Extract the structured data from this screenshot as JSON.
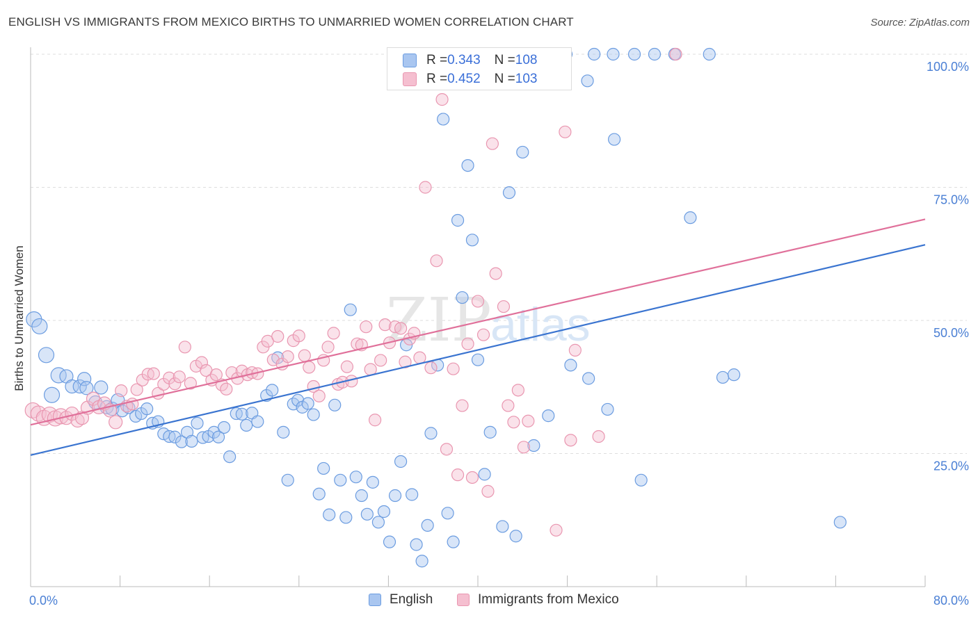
{
  "title": "ENGLISH VS IMMIGRANTS FROM MEXICO BIRTHS TO UNMARRIED WOMEN CORRELATION CHART",
  "source": "Source: ZipAtlas.com",
  "watermark": {
    "zip": "ZIP",
    "atlas": "atlas"
  },
  "stats": {
    "english": {
      "r_label": "R = ",
      "r_value": "0.343",
      "n_label": "N = ",
      "n_value": "108"
    },
    "mexico": {
      "r_label": "R = ",
      "r_value": "0.452",
      "n_label": "N = ",
      "n_value": "103"
    }
  },
  "legend": {
    "english": "English",
    "mexico": "Immigrants from Mexico"
  },
  "colors": {
    "english_fill": "#a9c6f0",
    "english_stroke": "#6b9ce0",
    "english_line": "#3a74d0",
    "mexico_fill": "#f5bfd0",
    "mexico_stroke": "#e996b0",
    "mexico_line": "#e0709a",
    "axis_text": "#4a7fd4",
    "grid": "#dddddd"
  },
  "chart_data": {
    "type": "scatter",
    "title": "ENGLISH VS IMMIGRANTS FROM MEXICO BIRTHS TO UNMARRIED WOMEN CORRELATION CHART",
    "xlabel": "",
    "ylabel": "Births to Unmarried Women",
    "xlim": [
      0,
      80
    ],
    "ylim": [
      0,
      100
    ],
    "x_tick_labels": [
      "0.0%",
      "80.0%"
    ],
    "y_tick_labels": [
      "25.0%",
      "50.0%",
      "75.0%",
      "100.0%"
    ],
    "y_ticks": [
      25,
      50,
      75,
      100
    ],
    "grid": true,
    "legend_position": "bottom",
    "series": [
      {
        "name": "English",
        "r": 0.343,
        "n": 108,
        "trend": {
          "x": [
            0,
            80
          ],
          "y": [
            24.7,
            64.2
          ]
        },
        "points": [
          [
            0.3,
            50.2
          ],
          [
            0.8,
            48.9
          ],
          [
            1.4,
            43.5
          ],
          [
            1.9,
            36.0
          ],
          [
            2.5,
            39.7
          ],
          [
            3.2,
            39.5
          ],
          [
            3.7,
            37.6
          ],
          [
            4.4,
            37.6
          ],
          [
            4.8,
            39.0
          ],
          [
            5.0,
            37.3
          ],
          [
            5.8,
            34.6
          ],
          [
            6.3,
            37.4
          ],
          [
            6.8,
            33.7
          ],
          [
            7.3,
            33.4
          ],
          [
            7.8,
            35.0
          ],
          [
            8.2,
            33.0
          ],
          [
            8.8,
            33.6
          ],
          [
            9.4,
            32.0
          ],
          [
            9.9,
            32.5
          ],
          [
            10.4,
            33.4
          ],
          [
            10.9,
            30.7
          ],
          [
            11.4,
            31.0
          ],
          [
            11.9,
            28.7
          ],
          [
            12.4,
            28.2
          ],
          [
            12.9,
            28.1
          ],
          [
            13.5,
            27.2
          ],
          [
            14.0,
            29.0
          ],
          [
            14.4,
            27.3
          ],
          [
            14.9,
            30.7
          ],
          [
            15.4,
            28.0
          ],
          [
            15.9,
            28.2
          ],
          [
            16.4,
            29.0
          ],
          [
            16.8,
            28.1
          ],
          [
            17.3,
            29.9
          ],
          [
            17.8,
            24.4
          ],
          [
            18.4,
            32.5
          ],
          [
            18.9,
            32.4
          ],
          [
            19.3,
            30.3
          ],
          [
            19.8,
            32.6
          ],
          [
            20.3,
            31.0
          ],
          [
            21.1,
            35.9
          ],
          [
            21.6,
            36.9
          ],
          [
            22.1,
            43.0
          ],
          [
            22.6,
            29.0
          ],
          [
            23.0,
            20.0
          ],
          [
            23.5,
            34.3
          ],
          [
            23.9,
            35.0
          ],
          [
            24.3,
            33.7
          ],
          [
            24.8,
            34.4
          ],
          [
            25.3,
            32.3
          ],
          [
            25.8,
            17.4
          ],
          [
            26.2,
            22.2
          ],
          [
            26.7,
            13.5
          ],
          [
            27.2,
            34.1
          ],
          [
            27.7,
            20.0
          ],
          [
            28.2,
            13.0
          ],
          [
            28.6,
            52.0
          ],
          [
            29.1,
            20.6
          ],
          [
            29.6,
            17.1
          ],
          [
            30.1,
            13.6
          ],
          [
            30.6,
            19.6
          ],
          [
            31.1,
            12.1
          ],
          [
            31.6,
            14.1
          ],
          [
            32.1,
            8.4
          ],
          [
            32.6,
            17.1
          ],
          [
            33.1,
            23.5
          ],
          [
            33.6,
            45.4
          ],
          [
            34.1,
            17.3
          ],
          [
            34.5,
            7.9
          ],
          [
            35.0,
            4.8
          ],
          [
            35.5,
            11.5
          ],
          [
            35.8,
            28.8
          ],
          [
            36.4,
            41.6
          ],
          [
            36.9,
            87.8
          ],
          [
            37.3,
            13.8
          ],
          [
            37.8,
            8.4
          ],
          [
            38.2,
            68.8
          ],
          [
            38.6,
            54.3
          ],
          [
            39.1,
            79.1
          ],
          [
            39.5,
            65.1
          ],
          [
            40.0,
            42.6
          ],
          [
            40.6,
            21.1
          ],
          [
            41.1,
            29.0
          ],
          [
            42.2,
            11.3
          ],
          [
            42.8,
            74.0
          ],
          [
            43.4,
            9.5
          ],
          [
            44.0,
            81.6
          ],
          [
            45.0,
            26.5
          ],
          [
            45.6,
            100.0
          ],
          [
            46.3,
            32.1
          ],
          [
            47.2,
            100.0
          ],
          [
            47.9,
            100.0
          ],
          [
            48.3,
            41.6
          ],
          [
            49.8,
            95.0
          ],
          [
            49.9,
            39.1
          ],
          [
            51.6,
            33.3
          ],
          [
            52.2,
            84.0
          ],
          [
            54.0,
            100.0
          ],
          [
            54.6,
            20.0
          ],
          [
            55.8,
            100.0
          ],
          [
            57.6,
            100.0
          ],
          [
            59.0,
            69.3
          ],
          [
            61.9,
            39.3
          ],
          [
            62.9,
            39.8
          ],
          [
            72.4,
            12.1
          ],
          [
            50.4,
            100.0
          ],
          [
            52.1,
            100.0
          ],
          [
            60.7,
            100.0
          ]
        ]
      },
      {
        "name": "Immigrants from Mexico",
        "r": 0.452,
        "n": 103,
        "trend": {
          "x": [
            0,
            80
          ],
          "y": [
            30.4,
            69.0
          ]
        },
        "points": [
          [
            0.2,
            33.1
          ],
          [
            0.7,
            32.5
          ],
          [
            1.2,
            31.7
          ],
          [
            1.7,
            32.3
          ],
          [
            2.2,
            31.6
          ],
          [
            2.7,
            32.0
          ],
          [
            3.2,
            31.7
          ],
          [
            3.7,
            32.5
          ],
          [
            4.2,
            31.2
          ],
          [
            4.6,
            31.7
          ],
          [
            5.1,
            33.6
          ],
          [
            5.6,
            35.3
          ],
          [
            6.1,
            33.7
          ],
          [
            6.6,
            34.4
          ],
          [
            7.1,
            33.1
          ],
          [
            7.6,
            30.9
          ],
          [
            8.1,
            36.8
          ],
          [
            8.6,
            33.9
          ],
          [
            9.1,
            34.3
          ],
          [
            9.5,
            37.0
          ],
          [
            10.0,
            38.8
          ],
          [
            10.5,
            39.9
          ],
          [
            11.0,
            40.0
          ],
          [
            11.4,
            36.3
          ],
          [
            11.9,
            38.0
          ],
          [
            12.4,
            39.2
          ],
          [
            12.9,
            38.1
          ],
          [
            13.3,
            39.4
          ],
          [
            13.8,
            45.0
          ],
          [
            14.3,
            38.2
          ],
          [
            14.8,
            41.4
          ],
          [
            15.3,
            42.1
          ],
          [
            15.7,
            40.6
          ],
          [
            16.2,
            38.8
          ],
          [
            16.6,
            39.8
          ],
          [
            17.1,
            37.9
          ],
          [
            17.5,
            37.1
          ],
          [
            18.0,
            40.2
          ],
          [
            18.5,
            39.1
          ],
          [
            18.9,
            40.5
          ],
          [
            19.4,
            39.8
          ],
          [
            19.8,
            40.2
          ],
          [
            20.3,
            40.0
          ],
          [
            20.8,
            45.0
          ],
          [
            21.2,
            46.1
          ],
          [
            21.7,
            42.6
          ],
          [
            22.1,
            47.0
          ],
          [
            22.5,
            41.8
          ],
          [
            23.0,
            43.2
          ],
          [
            23.5,
            46.2
          ],
          [
            24.0,
            47.1
          ],
          [
            24.5,
            43.4
          ],
          [
            24.9,
            41.2
          ],
          [
            25.3,
            37.6
          ],
          [
            25.8,
            35.8
          ],
          [
            26.2,
            42.5
          ],
          [
            26.6,
            45.0
          ],
          [
            27.1,
            47.6
          ],
          [
            27.5,
            38.0
          ],
          [
            27.9,
            38.4
          ],
          [
            28.3,
            41.3
          ],
          [
            28.7,
            38.6
          ],
          [
            29.2,
            45.6
          ],
          [
            29.6,
            45.4
          ],
          [
            30.0,
            48.8
          ],
          [
            30.4,
            40.8
          ],
          [
            30.8,
            31.3
          ],
          [
            31.3,
            42.5
          ],
          [
            31.7,
            49.2
          ],
          [
            32.1,
            45.8
          ],
          [
            32.6,
            48.8
          ],
          [
            33.1,
            48.5
          ],
          [
            33.5,
            42.2
          ],
          [
            33.9,
            46.5
          ],
          [
            34.3,
            47.6
          ],
          [
            34.8,
            43.0
          ],
          [
            35.3,
            75.0
          ],
          [
            35.8,
            41.1
          ],
          [
            36.3,
            61.2
          ],
          [
            36.8,
            91.5
          ],
          [
            37.2,
            25.8
          ],
          [
            37.8,
            40.9
          ],
          [
            38.2,
            21.0
          ],
          [
            38.6,
            34.0
          ],
          [
            39.1,
            45.6
          ],
          [
            39.5,
            20.5
          ],
          [
            40.0,
            53.6
          ],
          [
            40.5,
            47.3
          ],
          [
            40.9,
            17.9
          ],
          [
            41.3,
            83.2
          ],
          [
            41.6,
            58.8
          ],
          [
            42.3,
            52.6
          ],
          [
            42.7,
            34.0
          ],
          [
            43.2,
            30.9
          ],
          [
            43.6,
            36.9
          ],
          [
            44.1,
            26.2
          ],
          [
            44.5,
            31.1
          ],
          [
            47.0,
            10.6
          ],
          [
            47.8,
            85.4
          ],
          [
            48.3,
            27.5
          ],
          [
            48.7,
            44.4
          ],
          [
            50.8,
            28.2
          ],
          [
            57.7,
            100.0
          ]
        ]
      }
    ]
  }
}
